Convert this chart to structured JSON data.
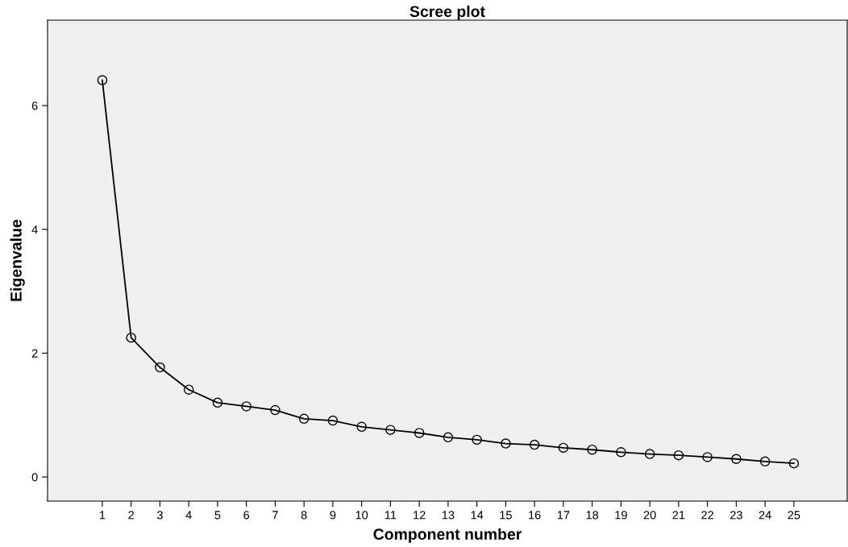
{
  "chart_data": {
    "type": "line",
    "title": "Scree plot",
    "xlabel": "Component number",
    "ylabel": "Eigenvalue",
    "x": [
      1,
      2,
      3,
      4,
      5,
      6,
      7,
      8,
      9,
      10,
      11,
      12,
      13,
      14,
      15,
      16,
      17,
      18,
      19,
      20,
      21,
      22,
      23,
      24,
      25
    ],
    "series": [
      {
        "color": "#000000",
        "values": [
          6.41,
          2.25,
          1.77,
          1.41,
          1.2,
          1.14,
          1.08,
          0.94,
          0.91,
          0.81,
          0.76,
          0.71,
          0.64,
          0.6,
          0.54,
          0.52,
          0.47,
          0.44,
          0.4,
          0.37,
          0.35,
          0.32,
          0.29,
          0.25,
          0.22
        ]
      }
    ],
    "xlim": [
      -0.9,
      26.85
    ],
    "xticks": [
      1,
      2,
      3,
      4,
      5,
      6,
      7,
      8,
      9,
      10,
      11,
      12,
      13,
      14,
      15,
      16,
      17,
      18,
      19,
      20,
      21,
      22,
      23,
      24,
      25
    ],
    "ylim": [
      -0.39,
      7.38
    ],
    "yticks": [
      0,
      2,
      4,
      6
    ],
    "marker": "circle",
    "line_style": "solid",
    "grid": false,
    "legend": false
  }
}
